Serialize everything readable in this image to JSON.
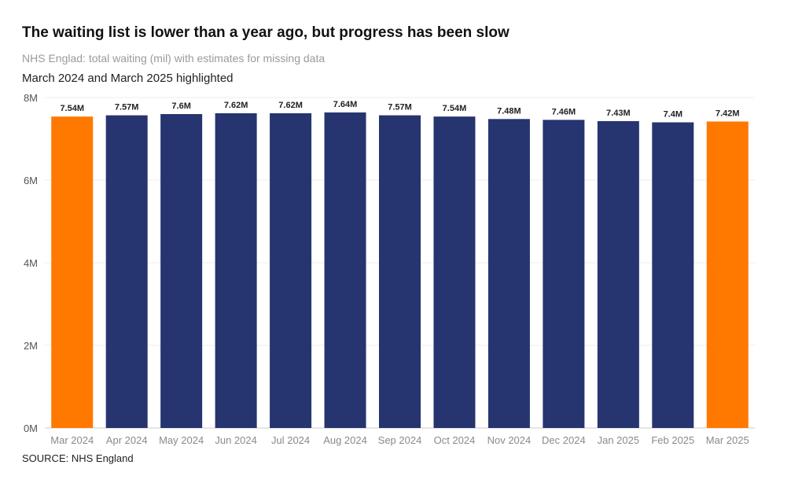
{
  "header": {
    "title": "The waiting list is lower than a year ago, but progress has been slow",
    "subtitle": "NHS Englad: total waiting (mil) with estimates for missing data",
    "highlight_note": "March 2024 and March 2025 highlighted"
  },
  "footer": {
    "source": "SOURCE: NHS England"
  },
  "colors": {
    "bar": "#26346f",
    "highlight": "#ff7800",
    "grid": "#ececec",
    "axis": "#cccccc"
  },
  "chart_data": {
    "type": "bar",
    "categories": [
      "Mar 2024",
      "Apr 2024",
      "May 2024",
      "Jun 2024",
      "Jul 2024",
      "Aug 2024",
      "Sep 2024",
      "Oct 2024",
      "Nov 2024",
      "Dec 2024",
      "Jan 2025",
      "Feb 2025",
      "Mar 2025"
    ],
    "values": [
      7.54,
      7.57,
      7.6,
      7.62,
      7.62,
      7.64,
      7.57,
      7.54,
      7.48,
      7.46,
      7.43,
      7.4,
      7.42
    ],
    "data_labels": [
      "7.54M",
      "7.57M",
      "7.6M",
      "7.62M",
      "7.62M",
      "7.64M",
      "7.57M",
      "7.54M",
      "7.48M",
      "7.46M",
      "7.43M",
      "7.4M",
      "7.42M"
    ],
    "highlighted": [
      "Mar 2024",
      "Mar 2025"
    ],
    "ylim": [
      0,
      8
    ],
    "yticks": [
      0,
      2,
      4,
      6,
      8
    ],
    "ytick_labels": [
      "0M",
      "2M",
      "4M",
      "6M",
      "8M"
    ],
    "grid": true,
    "legend": "none"
  }
}
